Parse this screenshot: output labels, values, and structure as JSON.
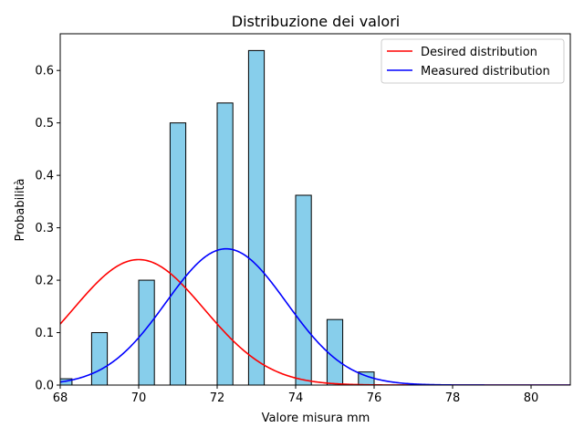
{
  "chart_data": {
    "type": "bar",
    "title": "Distribuzione dei valori",
    "xlabel": "Valore misura mm",
    "ylabel": "Probabilità",
    "xlim": [
      68,
      81
    ],
    "ylim": [
      0,
      0.67
    ],
    "xticks": [
      68,
      70,
      72,
      74,
      76,
      78,
      80
    ],
    "yticks": [
      0.0,
      0.1,
      0.2,
      0.3,
      0.4,
      0.5,
      0.6
    ],
    "ytick_labels": [
      "0.0",
      "0.1",
      "0.2",
      "0.3",
      "0.4",
      "0.5",
      "0.6"
    ],
    "grid": false,
    "legend_position": "top-right",
    "histogram": {
      "bar_color": "#87ceeb",
      "edge_color": "#000000",
      "bar_width": 0.4,
      "bars": [
        {
          "x": 68.1,
          "value": 0.012
        },
        {
          "x": 69.0,
          "value": 0.1
        },
        {
          "x": 70.2,
          "value": 0.2
        },
        {
          "x": 71.0,
          "value": 0.5
        },
        {
          "x": 72.2,
          "value": 0.538
        },
        {
          "x": 73.0,
          "value": 0.638
        },
        {
          "x": 74.2,
          "value": 0.362
        },
        {
          "x": 75.0,
          "value": 0.125
        },
        {
          "x": 75.8,
          "value": 0.025
        }
      ]
    },
    "series": [
      {
        "name": "Desired distribution",
        "color": "#ff0000",
        "mean": 70.0,
        "std": 1.667
      },
      {
        "name": "Measured distribution",
        "color": "#0000ff",
        "mean": 72.23,
        "std": 1.535
      }
    ]
  }
}
